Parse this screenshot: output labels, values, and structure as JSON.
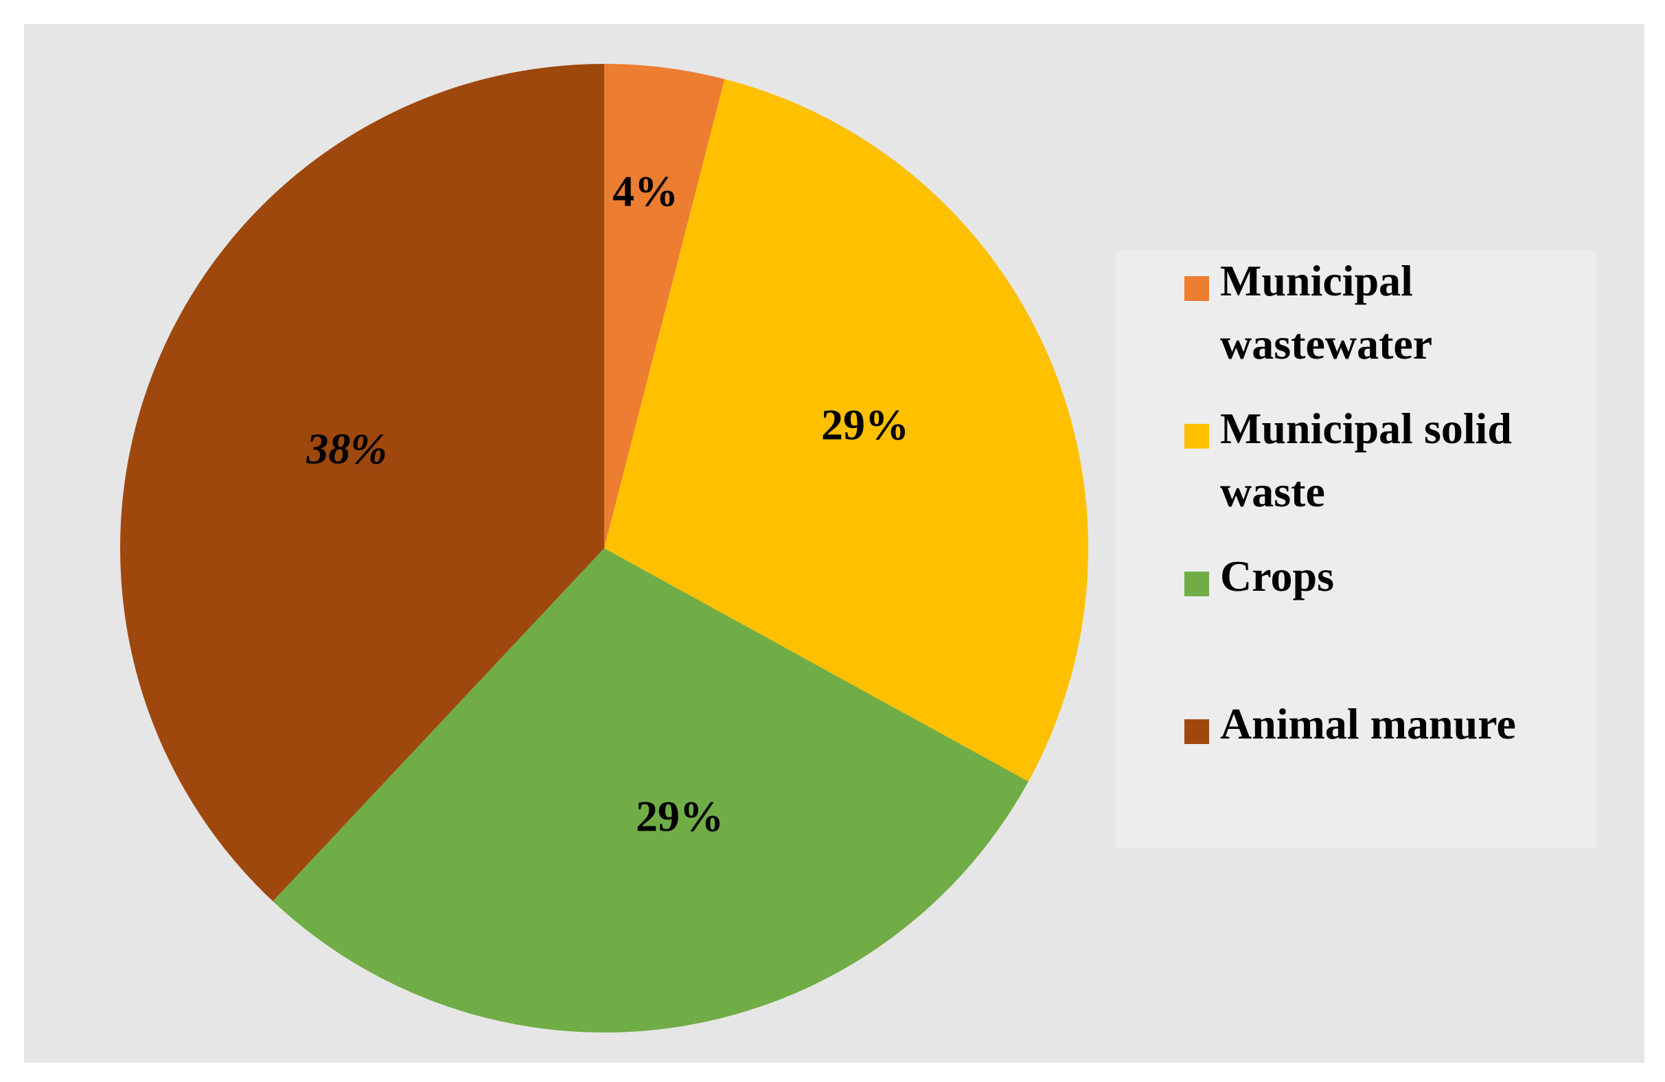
{
  "chart_data": {
    "type": "pie",
    "title": "",
    "start_angle_deg": 0,
    "direction": "clockwise",
    "legend_position": "right",
    "slices": [
      {
        "label": "Municipal wastewater",
        "legend_lines": [
          "Municipal",
          "wastewater"
        ],
        "value": 4,
        "data_label": "4%",
        "color": "#ED7D31",
        "label_italic": false
      },
      {
        "label": "Municipal solid waste",
        "legend_lines": [
          "Municipal solid",
          "waste"
        ],
        "value": 29,
        "data_label": "29%",
        "color": "#FFC000",
        "label_italic": false
      },
      {
        "label": "Crops",
        "legend_lines": [
          "Crops"
        ],
        "value": 29,
        "data_label": "29%",
        "color": "#70AD47",
        "label_italic": false
      },
      {
        "label": "Animal manure",
        "legend_lines": [
          "Animal manure"
        ],
        "value": 38,
        "data_label": "38%",
        "color": "#9E480E",
        "label_italic": true
      }
    ]
  },
  "colors": {
    "plot_background": "#E6E6E6",
    "legend_background": "#EDEDED",
    "page_background": "#FFFFFF"
  }
}
